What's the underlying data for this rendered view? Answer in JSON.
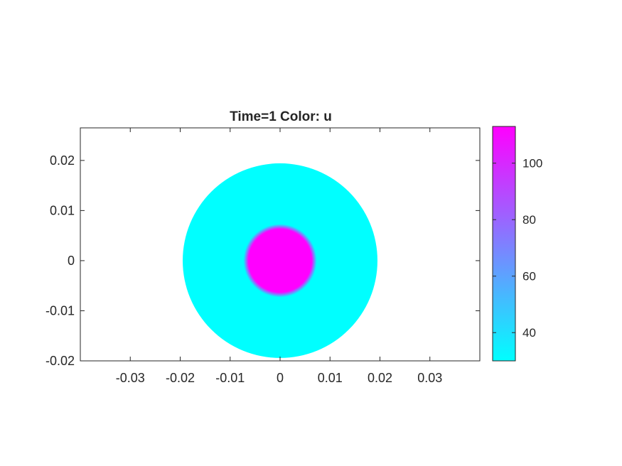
{
  "chart_data": {
    "type": "heatmap",
    "title": "Time=1   Color: u",
    "xlabel": "",
    "ylabel": "",
    "xlim": [
      -0.04,
      0.04
    ],
    "ylim": [
      -0.02,
      0.0265
    ],
    "xticks": [
      -0.03,
      -0.02,
      -0.01,
      0,
      0.01,
      0.02,
      0.03
    ],
    "xtick_labels": [
      "-0.03",
      "-0.02",
      "-0.01",
      "0",
      "0.01",
      "0.02",
      "0.03"
    ],
    "yticks": [
      -0.02,
      -0.01,
      0,
      0.01,
      0.02
    ],
    "ytick_labels": [
      "-0.02",
      "-0.01",
      "0",
      "0.01",
      "0.02"
    ],
    "regions": [
      {
        "name": "outer disk",
        "shape": "circle",
        "center": [
          0,
          0
        ],
        "radius": 0.0195,
        "value": 30
      },
      {
        "name": "inner disk",
        "shape": "circle",
        "center": [
          0,
          0
        ],
        "radius": 0.0068,
        "value": 113
      }
    ],
    "colorbar": {
      "colormap": "cool",
      "color_low": "#00ffff",
      "color_high": "#ff00ff",
      "min": 30,
      "max": 113,
      "ticks": [
        40,
        60,
        80,
        100
      ],
      "tick_labels": [
        "40",
        "60",
        "80",
        "100"
      ]
    },
    "grid": false,
    "axis_equal": true
  }
}
